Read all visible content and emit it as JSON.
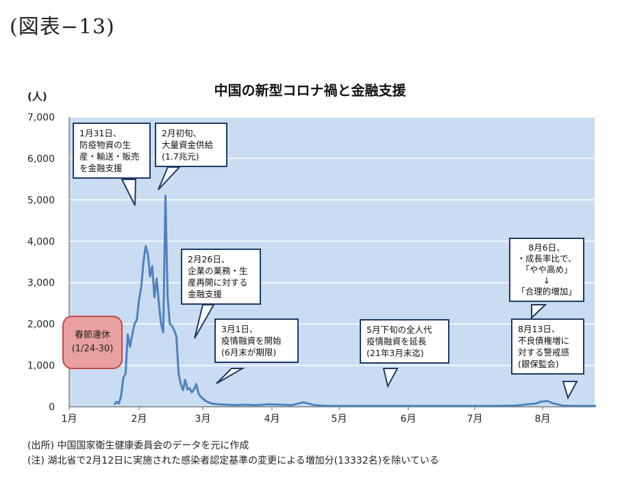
{
  "figure_label": "(図表−13)",
  "chart_data": {
    "type": "line",
    "title": "中国の新型コロナ禍と金融支援",
    "ylabel": "(人)",
    "xlabel": "",
    "ylim": [
      0,
      7000
    ],
    "yticks": [
      "0",
      "1,000",
      "2,000",
      "3,000",
      "4,000",
      "5,000",
      "6,000",
      "7,000"
    ],
    "xticks": [
      "1月",
      "2月",
      "3月",
      "4月",
      "5月",
      "6月",
      "7月",
      "8月"
    ],
    "grid": true,
    "series_color": "#4f81bd",
    "plot_bg": "#c9dcf1",
    "series": [
      {
        "x": [
          "01-21",
          "01-22",
          "01-23",
          "01-24",
          "01-25",
          "01-26",
          "01-27",
          "01-28",
          "01-29",
          "01-30",
          "01-31",
          "02-01",
          "02-02",
          "02-03",
          "02-04",
          "02-05",
          "02-06",
          "02-07",
          "02-08",
          "02-09",
          "02-10",
          "02-11",
          "02-12",
          "02-13",
          "02-14",
          "02-15",
          "02-16",
          "02-17",
          "02-18",
          "02-19",
          "02-20",
          "02-21",
          "02-22",
          "02-23",
          "02-24",
          "02-25",
          "02-26",
          "02-27",
          "02-28",
          "02-29",
          "03-01",
          "03-02",
          "03-03",
          "03-05",
          "03-08",
          "03-12",
          "03-16",
          "03-20",
          "03-25",
          "03-30",
          "04-05",
          "04-10",
          "04-15",
          "04-20",
          "04-25",
          "04-30",
          "05-10",
          "05-20",
          "05-31",
          "06-10",
          "06-20",
          "06-30",
          "07-10",
          "07-20",
          "07-25",
          "07-29",
          "07-31",
          "08-03",
          "08-06",
          "08-10",
          "08-15",
          "08-20",
          "08-25"
        ],
        "values": [
          50,
          120,
          80,
          250,
          700,
          800,
          1750,
          1450,
          1750,
          2000,
          2100,
          2600,
          2900,
          3500,
          3880,
          3700,
          3150,
          3400,
          2650,
          3100,
          2500,
          2000,
          1800,
          5100,
          2650,
          2000,
          1950,
          1850,
          1700,
          800,
          550,
          400,
          650,
          420,
          450,
          350,
          420,
          550,
          330,
          250,
          200,
          150,
          120,
          80,
          60,
          50,
          40,
          50,
          40,
          60,
          50,
          40,
          110,
          40,
          20,
          20,
          20,
          20,
          20,
          20,
          20,
          20,
          20,
          30,
          60,
          80,
          120,
          140,
          80,
          30,
          20,
          20,
          20
        ]
      }
    ],
    "annotations": [
      {
        "lines": [
          "1月31日、",
          "防疫物資の生",
          "産・輸送・販売",
          "を金融支援"
        ]
      },
      {
        "lines": [
          "2月初旬、",
          "大量資金供給",
          "(1.7兆元)"
        ]
      },
      {
        "lines": [
          "2月26日、",
          "企業の業務・生",
          "産再開に対する",
          "金融支援"
        ]
      },
      {
        "lines": [
          "3月1日、",
          "疫情融資を開始",
          "(6月末が期限)"
        ]
      },
      {
        "lines": [
          "5月下旬の全人代",
          "疫情融資を延長",
          "(21年3月末迄)"
        ]
      },
      {
        "lines": [
          "8月6日、",
          "・成長率比で、",
          "「やや高め」",
          "↓",
          "「合理的増加」"
        ]
      },
      {
        "lines": [
          "8月13日、",
          "不良債権増に",
          "対する警戒感",
          "(銀保監会)"
        ]
      }
    ],
    "holiday": {
      "lines": [
        "春節連休",
        "(1/24-30)"
      ]
    }
  },
  "notes": [
    "(出所) 中国国家衛生健康委員会のデータを元に作成",
    "(注) 湖北省で2月12日に実施された感染者認定基準の変更による増加分(13332名)を除いている"
  ]
}
